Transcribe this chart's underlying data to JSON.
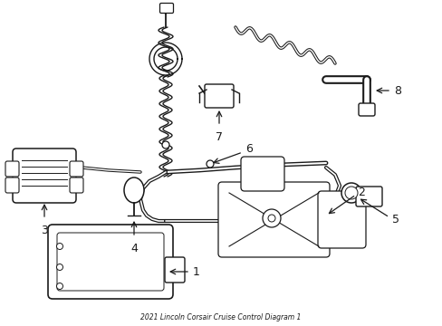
{
  "title": "2021 Lincoln Corsair Cruise Control Diagram 1",
  "bg": "#ffffff",
  "lc": "#1a1a1a",
  "figsize": [
    4.89,
    3.6
  ],
  "dpi": 100
}
